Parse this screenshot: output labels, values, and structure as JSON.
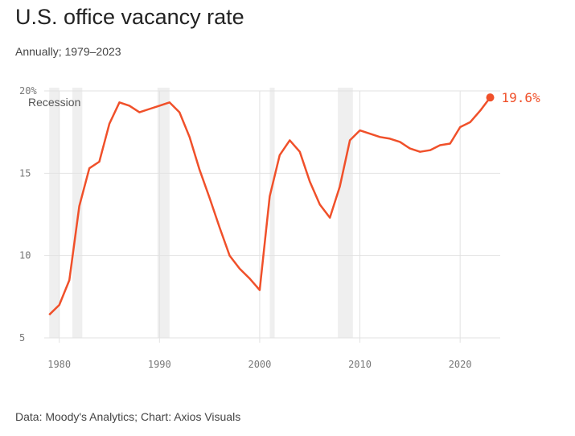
{
  "chart_data": {
    "type": "line",
    "title": "U.S. office vacancy rate",
    "subtitle": "Annually; 1979–2023",
    "source": "Data: Moody's Analytics; Chart: Axios Visuals",
    "xlabel": "",
    "ylabel": "",
    "xlim": [
      1978.5,
      2024
    ],
    "ylim": [
      5,
      20
    ],
    "grid": true,
    "x_ticks": [
      1980,
      1990,
      2000,
      2010,
      2020
    ],
    "x_tick_labels": [
      "1980",
      "1990",
      "2000",
      "2010",
      "2020"
    ],
    "y_ticks": [
      20,
      15,
      10,
      5
    ],
    "y_tick_labels": [
      "20%",
      "15",
      "10",
      "5"
    ],
    "recession_label": "Recession",
    "recessions": [
      [
        1979.0,
        1980.0
      ],
      [
        1981.3,
        1982.3
      ],
      [
        1989.8,
        1991.0
      ],
      [
        2001.0,
        2001.5
      ],
      [
        2007.8,
        2009.3
      ]
    ],
    "line_color": "#f0502a",
    "recession_color": "#efefef",
    "end_label": "19.6%",
    "series": [
      {
        "name": "Office vacancy rate",
        "x": [
          1979,
          1980,
          1981,
          1982,
          1983,
          1984,
          1985,
          1986,
          1987,
          1988,
          1989,
          1990,
          1991,
          1992,
          1993,
          1994,
          1995,
          1996,
          1997,
          1998,
          1999,
          2000,
          2001,
          2002,
          2003,
          2004,
          2005,
          2006,
          2007,
          2008,
          2009,
          2010,
          2011,
          2012,
          2013,
          2014,
          2015,
          2016,
          2017,
          2018,
          2019,
          2020,
          2021,
          2022,
          2023
        ],
        "values": [
          6.4,
          7.0,
          8.5,
          13.0,
          15.3,
          15.7,
          18.0,
          19.3,
          19.1,
          18.7,
          18.9,
          19.1,
          19.3,
          18.7,
          17.2,
          15.2,
          13.5,
          11.7,
          10.0,
          9.2,
          8.6,
          7.9,
          13.6,
          16.1,
          17.0,
          16.3,
          14.5,
          13.1,
          12.3,
          14.2,
          17.0,
          17.6,
          17.4,
          17.2,
          17.1,
          16.9,
          16.5,
          16.3,
          16.4,
          16.7,
          16.8,
          17.8,
          18.1,
          18.8,
          19.6
        ]
      }
    ]
  }
}
